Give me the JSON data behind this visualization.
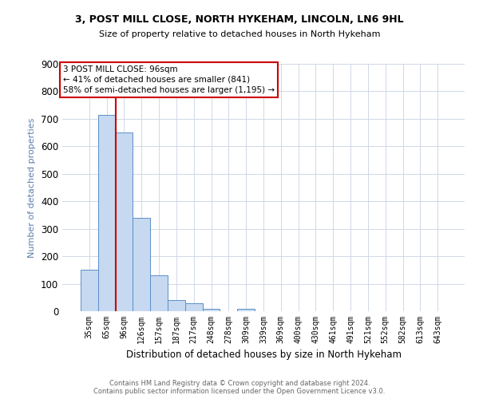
{
  "title_line1": "3, POST MILL CLOSE, NORTH HYKEHAM, LINCOLN, LN6 9HL",
  "title_line2": "Size of property relative to detached houses in North Hykeham",
  "xlabel": "Distribution of detached houses by size in North Hykeham",
  "ylabel": "Number of detached properties",
  "footer_line1": "Contains HM Land Registry data © Crown copyright and database right 2024.",
  "footer_line2": "Contains public sector information licensed under the Open Government Licence v3.0.",
  "categories": [
    "35sqm",
    "65sqm",
    "96sqm",
    "126sqm",
    "157sqm",
    "187sqm",
    "217sqm",
    "248sqm",
    "278sqm",
    "309sqm",
    "339sqm",
    "369sqm",
    "400sqm",
    "430sqm",
    "461sqm",
    "491sqm",
    "521sqm",
    "552sqm",
    "582sqm",
    "613sqm",
    "643sqm"
  ],
  "values": [
    150,
    715,
    650,
    340,
    130,
    42,
    30,
    10,
    0,
    8,
    0,
    0,
    0,
    0,
    0,
    0,
    0,
    0,
    0,
    0,
    0
  ],
  "bar_color": "#c6d9f0",
  "bar_edge_color": "#5b8fc7",
  "property_line_x": 1.5,
  "property_line_color": "#cc0000",
  "annotation_text": "3 POST MILL CLOSE: 96sqm\n← 41% of detached houses are smaller (841)\n58% of semi-detached houses are larger (1,195) →",
  "annotation_box_color": "#ffffff",
  "annotation_box_edge_color": "#cc0000",
  "ylim": [
    0,
    900
  ],
  "yticks": [
    0,
    100,
    200,
    300,
    400,
    500,
    600,
    700,
    800,
    900
  ],
  "background_color": "#ffffff",
  "grid_color": "#d0d8e8",
  "ylabel_color": "#5b7faa"
}
